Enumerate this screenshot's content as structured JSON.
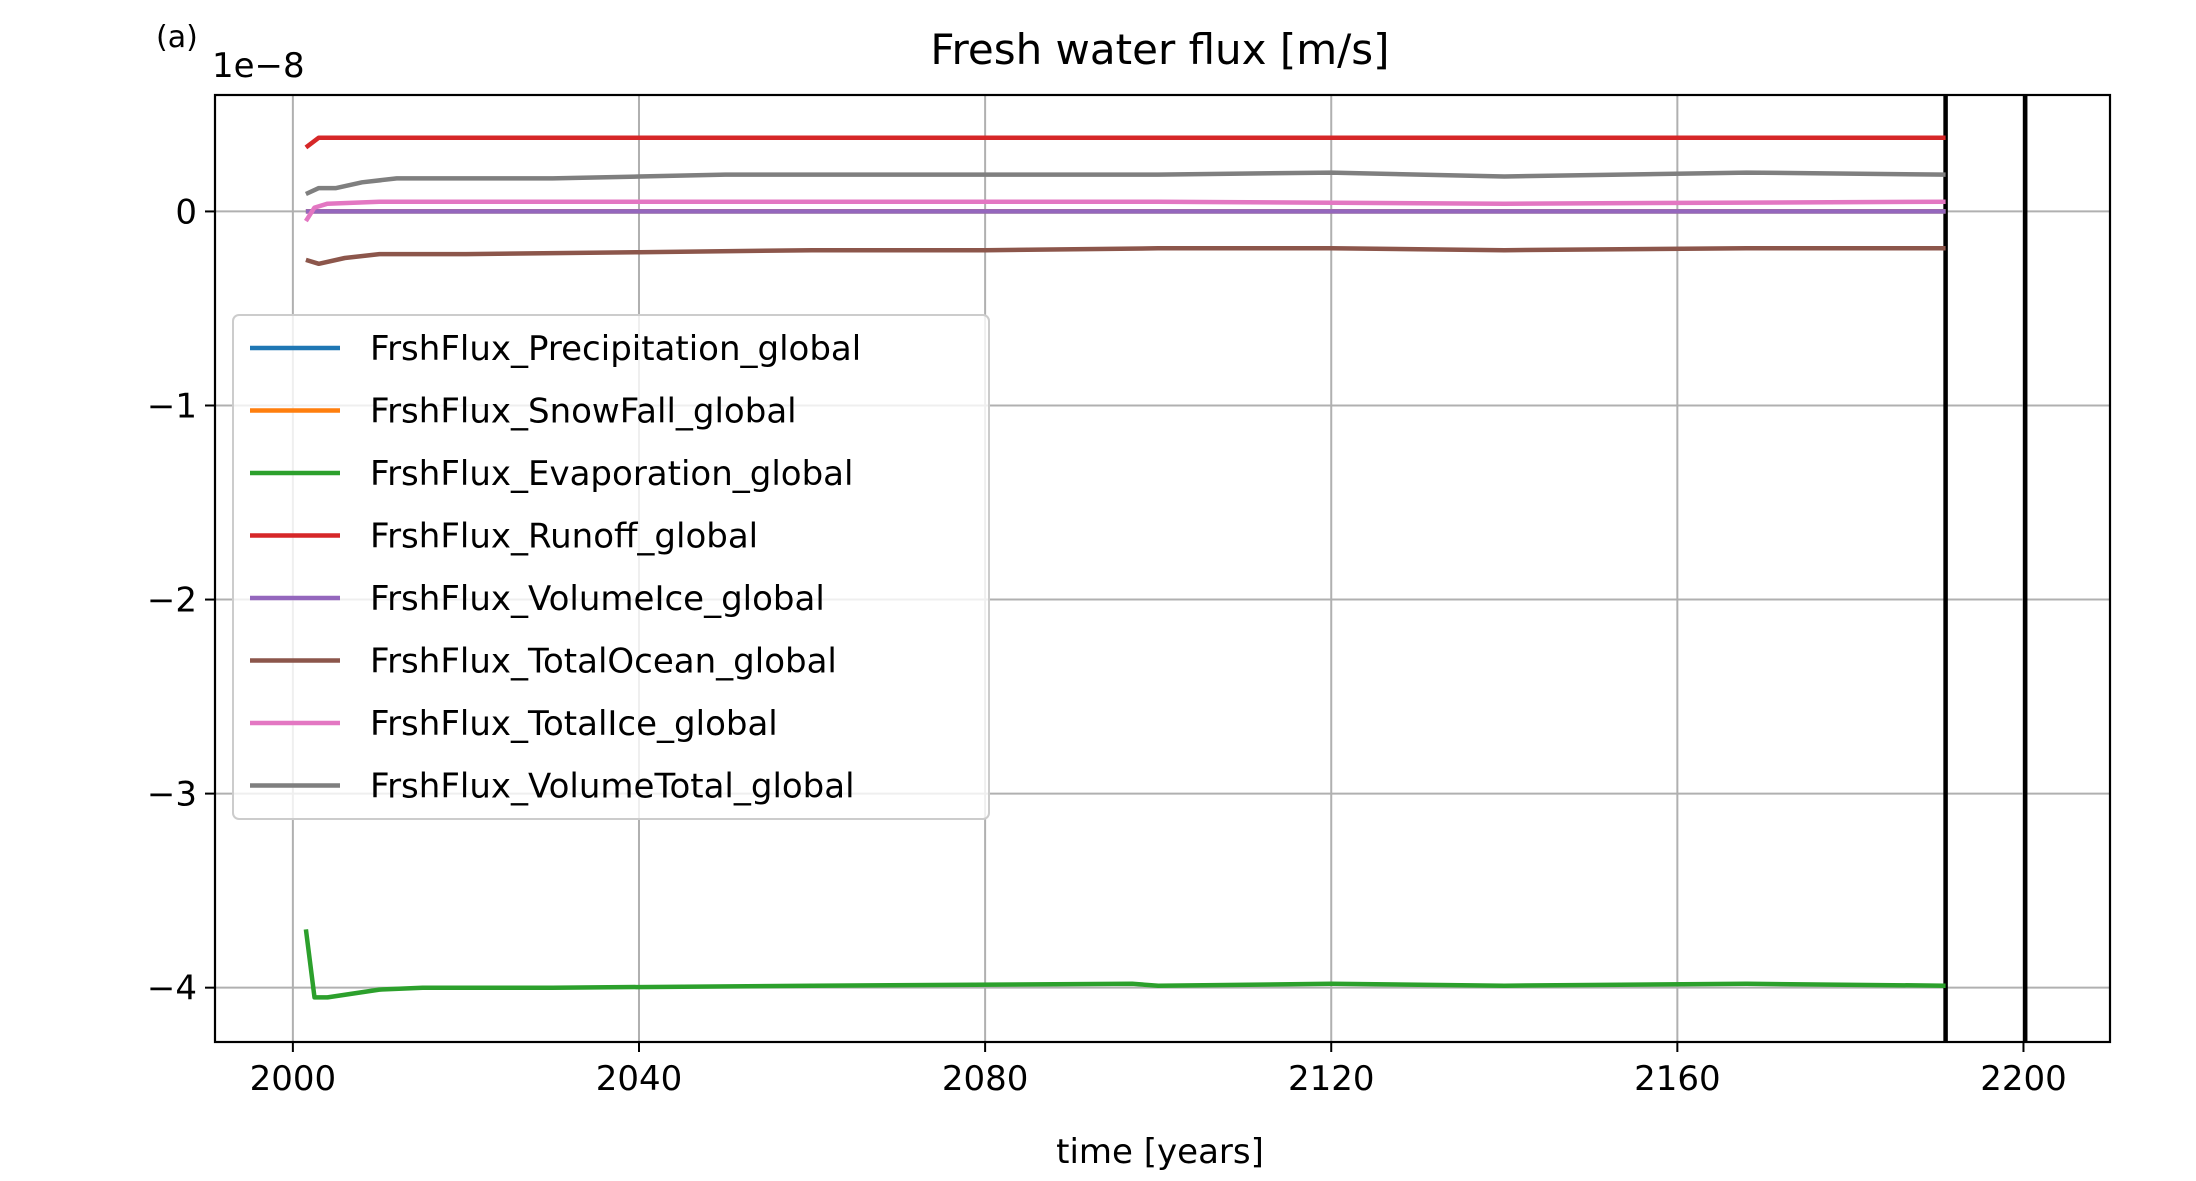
{
  "panel_label": "(a)",
  "offset_label": "1e−8",
  "chart_data": {
    "type": "line",
    "title": "Fresh water flux [m/s]",
    "xlabel": "time [years]",
    "ylabel": "",
    "xlim": [
      1991,
      2210
    ],
    "ylim": [
      -4.28,
      0.6
    ],
    "y_scale_factor": 1e-08,
    "grid": true,
    "legend_position": "center-left",
    "xticks": [
      2000,
      2040,
      2080,
      2120,
      2160,
      2200
    ],
    "xtick_labels": [
      "2000",
      "2040",
      "2080",
      "2120",
      "2160",
      "2200"
    ],
    "yticks": [
      0,
      -1,
      -2,
      -3,
      -4
    ],
    "ytick_labels": [
      "0",
      "−1",
      "−2",
      "−3",
      "−4"
    ],
    "vertical_lines": [
      {
        "x": 2191,
        "color": "#000000"
      },
      {
        "x": 2200.2,
        "color": "#000000"
      }
    ],
    "series": [
      {
        "name": "FrshFlux_Precipitation_global",
        "color": "#1f77b4",
        "points": [
          [
            2001.5,
            0.0
          ],
          [
            2003,
            0.0
          ],
          [
            2191,
            0.0
          ]
        ]
      },
      {
        "name": "FrshFlux_SnowFall_global",
        "color": "#ff7f0e",
        "points": [
          [
            2001.5,
            0.0
          ],
          [
            2003,
            0.0
          ],
          [
            2191,
            0.0
          ]
        ]
      },
      {
        "name": "FrshFlux_Evaporation_global",
        "color": "#2ca02c",
        "points": [
          [
            2001.5,
            -3.7
          ],
          [
            2002.5,
            -4.05
          ],
          [
            2004,
            -4.05
          ],
          [
            2007,
            -4.03
          ],
          [
            2010,
            -4.01
          ],
          [
            2015,
            -4.0
          ],
          [
            2030,
            -4.0
          ],
          [
            2060,
            -3.99
          ],
          [
            2097,
            -3.98
          ],
          [
            2100,
            -3.99
          ],
          [
            2120,
            -3.98
          ],
          [
            2140,
            -3.99
          ],
          [
            2168,
            -3.98
          ],
          [
            2191,
            -3.99
          ]
        ]
      },
      {
        "name": "FrshFlux_Runoff_global",
        "color": "#d62728",
        "points": [
          [
            2001.5,
            0.33
          ],
          [
            2003,
            0.38
          ],
          [
            2191,
            0.38
          ]
        ]
      },
      {
        "name": "FrshFlux_VolumeIce_global",
        "color": "#9467bd",
        "points": [
          [
            2001.5,
            0.0
          ],
          [
            2003,
            0.0
          ],
          [
            2191,
            0.0
          ]
        ]
      },
      {
        "name": "FrshFlux_TotalOcean_global",
        "color": "#8c564b",
        "points": [
          [
            2001.5,
            -0.25
          ],
          [
            2003,
            -0.27
          ],
          [
            2006,
            -0.24
          ],
          [
            2010,
            -0.22
          ],
          [
            2020,
            -0.22
          ],
          [
            2040,
            -0.21
          ],
          [
            2060,
            -0.2
          ],
          [
            2080,
            -0.2
          ],
          [
            2100,
            -0.19
          ],
          [
            2120,
            -0.19
          ],
          [
            2140,
            -0.2
          ],
          [
            2168,
            -0.19
          ],
          [
            2191,
            -0.19
          ]
        ]
      },
      {
        "name": "FrshFlux_TotalIce_global",
        "color": "#e377c2",
        "points": [
          [
            2001.5,
            -0.05
          ],
          [
            2002.5,
            0.02
          ],
          [
            2004,
            0.04
          ],
          [
            2010,
            0.05
          ],
          [
            2030,
            0.05
          ],
          [
            2060,
            0.05
          ],
          [
            2100,
            0.05
          ],
          [
            2140,
            0.04
          ],
          [
            2191,
            0.05
          ]
        ]
      },
      {
        "name": "FrshFlux_VolumeTotal_global",
        "color": "#7f7f7f",
        "points": [
          [
            2001.5,
            0.09
          ],
          [
            2003,
            0.12
          ],
          [
            2005,
            0.12
          ],
          [
            2008,
            0.15
          ],
          [
            2012,
            0.17
          ],
          [
            2030,
            0.17
          ],
          [
            2040,
            0.18
          ],
          [
            2050,
            0.19
          ],
          [
            2080,
            0.19
          ],
          [
            2100,
            0.19
          ],
          [
            2120,
            0.2
          ],
          [
            2140,
            0.18
          ],
          [
            2168,
            0.2
          ],
          [
            2191,
            0.19
          ]
        ]
      }
    ]
  }
}
